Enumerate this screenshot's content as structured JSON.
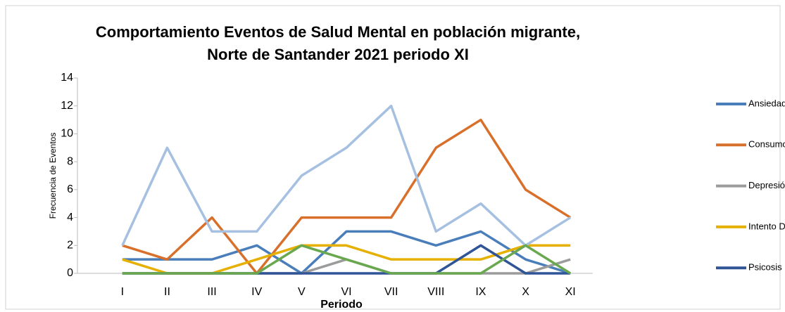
{
  "chart_data": {
    "type": "line",
    "title": "Comportamiento Eventos de Salud Mental en población migrante, Norte de Santander 2021 periodo XI",
    "x_label": "Periodo",
    "y_label": "Frecuencia de Eventos",
    "categories": [
      "I",
      "II",
      "III",
      "IV",
      "V",
      "VI",
      "VII",
      "VIII",
      "IX",
      "X",
      "XI"
    ],
    "ylim": [
      0,
      14
    ],
    "yticks": [
      0,
      2,
      4,
      6,
      8,
      10,
      12,
      14
    ],
    "series": [
      {
        "name": "Ansiedad",
        "color": "#4a7ebb",
        "values": [
          1,
          1,
          1,
          2,
          0,
          3,
          3,
          2,
          3,
          1,
          0
        ]
      },
      {
        "name": "Consumo De Spa",
        "color": "#d8702c",
        "values": [
          2,
          1,
          4,
          0,
          4,
          4,
          4,
          9,
          11,
          6,
          4
        ]
      },
      {
        "name": "Depresión",
        "color": "#9b9b9b",
        "values": [
          0,
          0,
          0,
          0,
          0,
          1,
          0,
          0,
          0,
          0,
          1
        ]
      },
      {
        "name": "Intento De Suicidio",
        "color": "#e6b000",
        "values": [
          1,
          0,
          0,
          1,
          2,
          2,
          1,
          1,
          1,
          2,
          2
        ]
      },
      {
        "name": "Psicosis",
        "color": "#2f5597",
        "values": [
          0,
          0,
          0,
          0,
          0,
          0,
          0,
          0,
          2,
          0,
          0
        ]
      },
      {
        "color": "#a5c0e0",
        "values": [
          2,
          9,
          3,
          3,
          7,
          9,
          12,
          3,
          5,
          2,
          4
        ]
      },
      {
        "color": "#6aa84f",
        "values": [
          0,
          0,
          0,
          0,
          2,
          1,
          0,
          0,
          0,
          2,
          0
        ]
      }
    ]
  }
}
